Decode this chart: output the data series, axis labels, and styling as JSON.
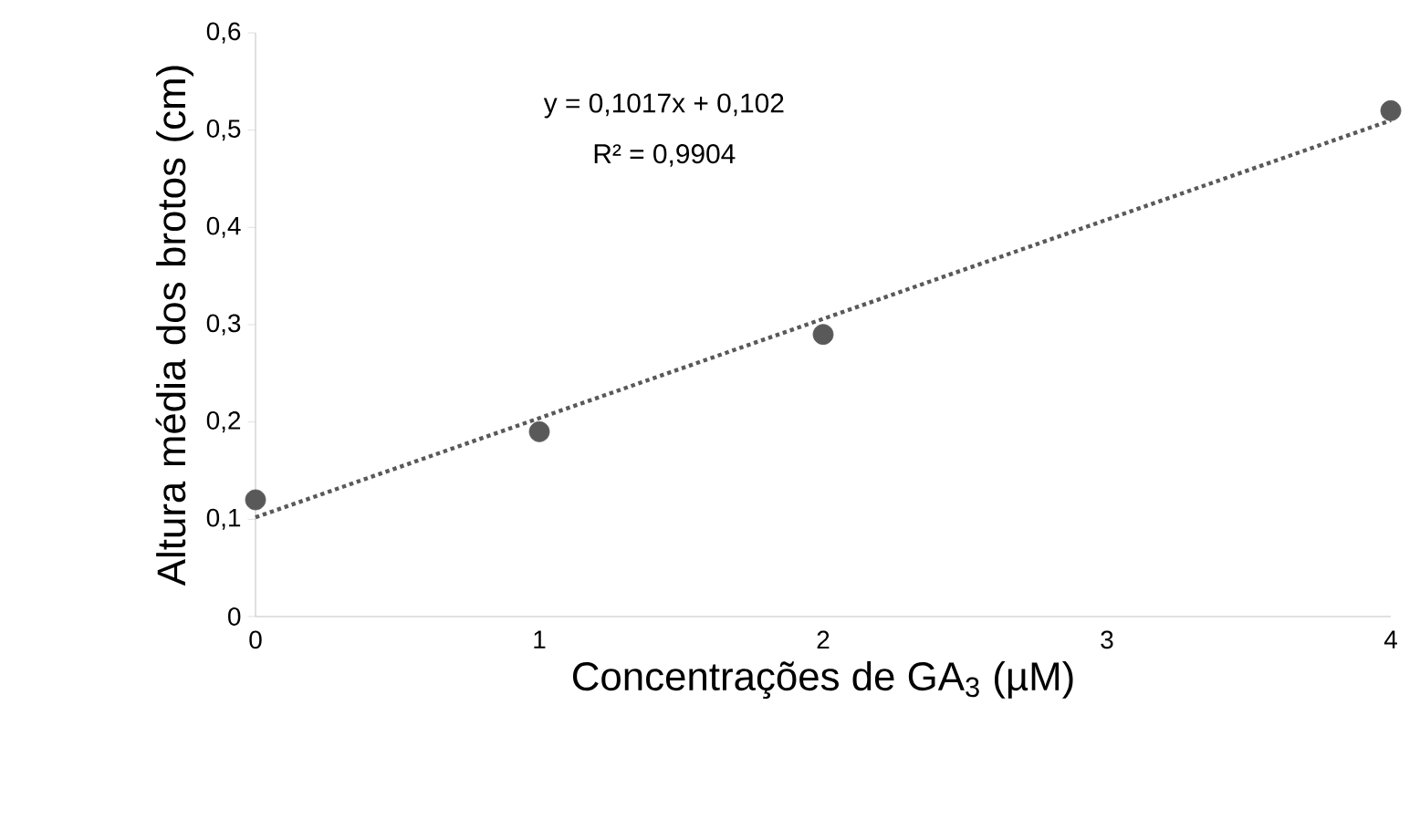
{
  "chart_data": {
    "type": "scatter",
    "xlabel": "Concentrações de GA$_{3}$ (µM)",
    "ylabel": "Altura média dos brotos (cm)",
    "x": [
      0,
      1,
      2,
      4
    ],
    "series": [
      {
        "color": "#595959",
        "marker": "circle",
        "values": [
          0.12,
          0.19,
          0.29,
          0.52
        ]
      },
      {
        "type": "line",
        "x": [
          0,
          4
        ],
        "values": [
          0.102,
          0.51
        ],
        "color": "#595959",
        "line_style": "dotted",
        "marker": "none"
      }
    ],
    "annotations": [
      "y = 0,1017x + 0,102",
      "R² = 0,9904"
    ],
    "xlim": [
      0,
      4
    ],
    "xticks": [
      0,
      1,
      2,
      3,
      4
    ],
    "ylim": [
      0,
      0.6
    ],
    "yticks": [
      {
        "value": 0,
        "label": "0"
      },
      {
        "value": 0.1,
        "label": "0,1"
      },
      {
        "value": 0.2,
        "label": "0,2"
      },
      {
        "value": 0.3,
        "label": "0,3"
      },
      {
        "value": 0.4,
        "label": "0,4"
      },
      {
        "value": 0.5,
        "label": "0,5"
      },
      {
        "value": 0.6,
        "label": "0,6"
      }
    ]
  }
}
